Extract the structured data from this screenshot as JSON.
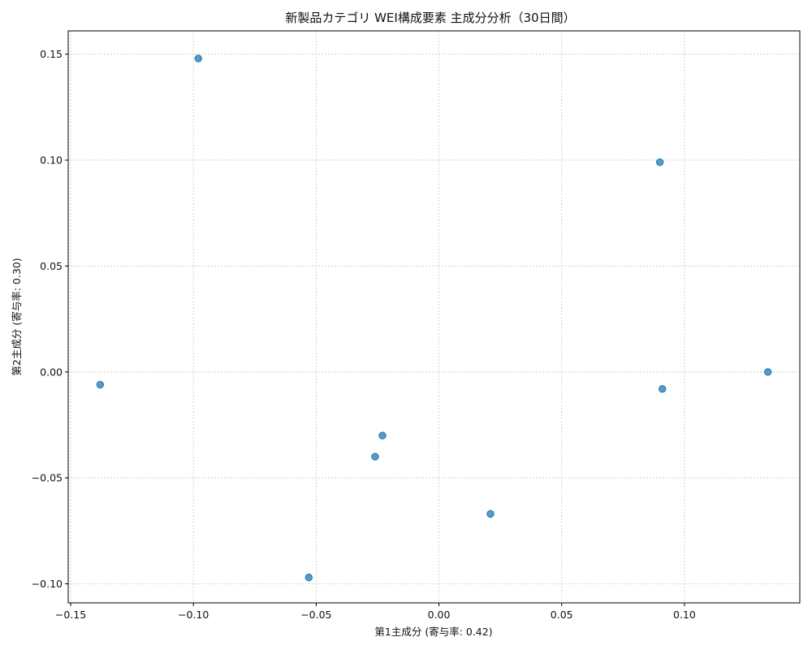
{
  "chart_data": {
    "type": "scatter",
    "title": "新製品カテゴリ WEI構成要素 主成分分析（30日間）",
    "xlabel": "第1主成分 (寄与率: 0.42)",
    "ylabel": "第2主成分 (寄与率: 0.30)",
    "xlim": [
      -0.151,
      0.147
    ],
    "ylim": [
      -0.109,
      0.161
    ],
    "xticks": [
      -0.15,
      -0.1,
      -0.05,
      0.0,
      0.05,
      0.1
    ],
    "xtick_labels": [
      "−0.15",
      "−0.10",
      "−0.05",
      "0.00",
      "0.05",
      "0.10"
    ],
    "yticks": [
      -0.1,
      -0.05,
      0.0,
      0.05,
      0.1,
      0.15
    ],
    "ytick_labels": [
      "−0.10",
      "−0.05",
      "0.00",
      "0.05",
      "0.10",
      "0.15"
    ],
    "grid": true,
    "point_color": "#1f77b4",
    "points": [
      {
        "x": -0.098,
        "y": 0.148
      },
      {
        "x": 0.09,
        "y": 0.099
      },
      {
        "x": -0.138,
        "y": -0.006
      },
      {
        "x": 0.134,
        "y": 0.0
      },
      {
        "x": 0.091,
        "y": -0.008
      },
      {
        "x": -0.023,
        "y": -0.03
      },
      {
        "x": -0.026,
        "y": -0.04
      },
      {
        "x": 0.021,
        "y": -0.067
      },
      {
        "x": -0.053,
        "y": -0.097
      }
    ]
  }
}
